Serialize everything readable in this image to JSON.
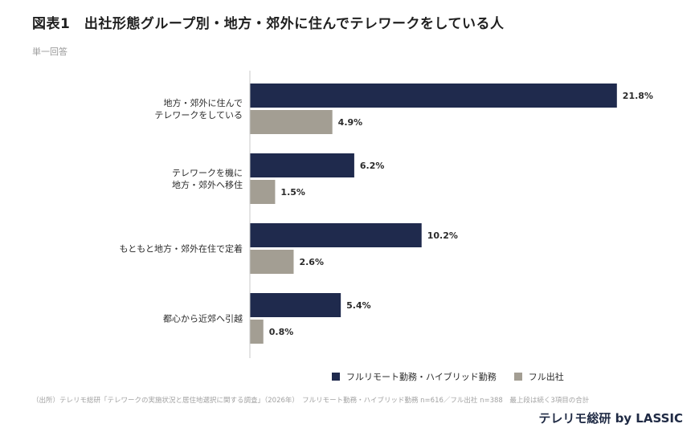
{
  "header": {
    "title": "図表1　出社形態グループ別・地方・郊外に住んでテレワークをしている人",
    "subtitle": "単一回答"
  },
  "colors": {
    "series1": "#1f2a4d",
    "series2": "#a39e93",
    "axis": "#c9c9c9"
  },
  "chart_data": {
    "type": "bar",
    "orientation": "horizontal",
    "categories": [
      "地方・郊外に住んで\nテレワークをしている",
      "テレワークを機に\n地方・郊外へ移住",
      "もともと地方・郊外在住で定着",
      "都心から近郊へ引越"
    ],
    "series": [
      {
        "name": "フルリモート勤務・ハイブリッド勤務",
        "values": [
          21.8,
          6.2,
          10.2,
          5.4
        ],
        "labels": [
          "21.8%",
          "6.2%",
          "10.2%",
          "5.4%"
        ]
      },
      {
        "name": "フル出社",
        "values": [
          4.9,
          1.5,
          2.6,
          0.8
        ],
        "labels": [
          "4.9%",
          "1.5%",
          "2.6%",
          "0.8%"
        ]
      }
    ],
    "xlim": [
      0,
      22
    ],
    "grid": false,
    "legend_position": "bottom-right"
  },
  "footer": {
    "source": "（出所）テレリモ総研「テレワークの実施状況と居住地選択に関する調査」（2026年）　フルリモート勤務・ハイブリッド勤務 n=616／フル出社 n=388　最上段は続く3項目の合計",
    "brand": "テレリモ総研 by LASSIC"
  }
}
